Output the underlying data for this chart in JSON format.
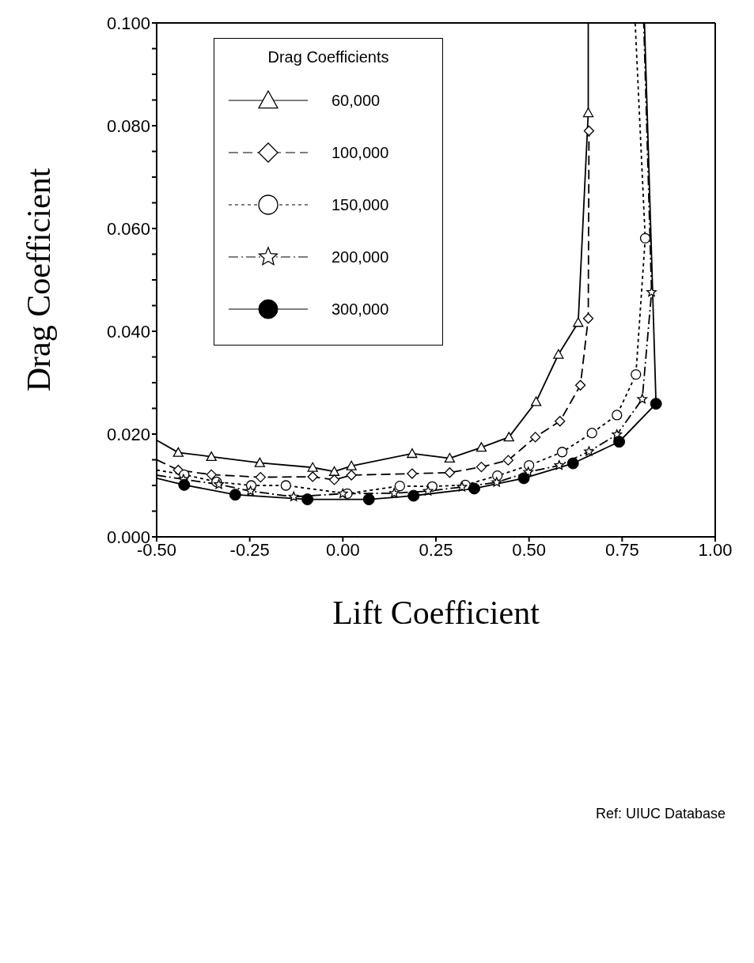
{
  "chart_data": {
    "type": "line",
    "xlabel": "Lift Coefficient",
    "ylabel": "Drag Coefficient",
    "legend_title": "Drag Coefficients",
    "legend": "top left",
    "grid": false,
    "xlim": [
      -0.5,
      1.0
    ],
    "ylim": [
      0,
      0.1
    ],
    "xticks": [
      {
        "value": -0.5,
        "label": "-0.50"
      },
      {
        "value": -0.25,
        "label": "-0.25"
      },
      {
        "value": 0,
        "label": "0.00"
      },
      {
        "value": 0.25,
        "label": "0.25"
      },
      {
        "value": 0.5,
        "label": "0.50"
      },
      {
        "value": 0.75,
        "label": "0.75"
      },
      {
        "value": 1.0,
        "label": "1.00"
      }
    ],
    "yticks": [
      {
        "value": 0,
        "label": "0.000"
      },
      {
        "value": 0.005,
        "label": null
      },
      {
        "value": 0.01,
        "label": null
      },
      {
        "value": 0.015,
        "label": null
      },
      {
        "value": 0.02,
        "label": "0.020"
      },
      {
        "value": 0.025,
        "label": null
      },
      {
        "value": 0.03,
        "label": null
      },
      {
        "value": 0.035,
        "label": null
      },
      {
        "value": 0.04,
        "label": "0.040"
      },
      {
        "value": 0.045,
        "label": null
      },
      {
        "value": 0.05,
        "label": null
      },
      {
        "value": 0.055,
        "label": null
      },
      {
        "value": 0.06,
        "label": "0.060"
      },
      {
        "value": 0.065,
        "label": null
      },
      {
        "value": 0.07,
        "label": null
      },
      {
        "value": 0.075,
        "label": null
      },
      {
        "value": 0.08,
        "label": "0.080"
      },
      {
        "value": 0.085,
        "label": null
      },
      {
        "value": 0.09,
        "label": null
      },
      {
        "value": 0.095,
        "label": null
      },
      {
        "value": 0.1,
        "label": "0.100"
      }
    ],
    "annotations": [
      "Ref: UIUC Database"
    ],
    "series": [
      {
        "name": "60,000",
        "color": "#000000",
        "marker": "triangle",
        "line_style": "solid",
        "x": [
          -0.5,
          -0.442,
          -0.353,
          -0.223,
          -0.081,
          -0.023,
          0.023,
          0.186,
          0.287,
          0.372,
          0.446,
          0.519,
          0.579,
          0.632,
          0.659,
          0.659
        ],
        "values": [
          0.0188,
          0.0164,
          0.0156,
          0.0144,
          0.0135,
          0.0127,
          0.0138,
          0.0162,
          0.0153,
          0.0174,
          0.0194,
          0.0263,
          0.0355,
          0.0417,
          0.0825,
          0.1
        ]
      },
      {
        "name": "100,000",
        "color": "#000000",
        "marker": "diamond",
        "line_style": "dashed",
        "x": [
          -0.5,
          -0.442,
          -0.353,
          -0.221,
          -0.081,
          -0.023,
          0.023,
          0.186,
          0.287,
          0.372,
          0.444,
          0.517,
          0.583,
          0.638,
          0.659,
          0.661
        ],
        "values": [
          0.015,
          0.013,
          0.0121,
          0.0116,
          0.0117,
          0.0111,
          0.012,
          0.0123,
          0.0125,
          0.0136,
          0.0149,
          0.0194,
          0.0225,
          0.0295,
          0.0425,
          0.079
        ]
      },
      {
        "name": "150,000",
        "color": "#000000",
        "marker": "circle",
        "colors": [
          null,
          "#ffffff",
          "#ffffff",
          "#ffffff",
          "#ffffff",
          "#ffffff",
          "#ffffff",
          "#ffffff",
          "#ffffff",
          "#ffffff",
          "#ffffff",
          "#ffffff",
          "#ffffff",
          "#ffffff",
          "#ffffff",
          "#ffffff",
          null
        ],
        "line_style": "dotted",
        "x": [
          -0.5,
          -0.426,
          -0.339,
          -0.246,
          -0.153,
          0.012,
          0.153,
          0.24,
          0.329,
          0.415,
          0.5,
          0.589,
          0.669,
          0.736,
          0.787,
          0.812,
          0.785
        ],
        "values": [
          0.013,
          0.0121,
          0.0107,
          0.01,
          0.01,
          0.0084,
          0.0099,
          0.0098,
          0.0101,
          0.0119,
          0.0139,
          0.0165,
          0.0202,
          0.0237,
          0.0316,
          0.0581,
          0.1
        ]
      },
      {
        "name": "200,000",
        "color": "#000000",
        "marker": "star",
        "line_style": "dashdot",
        "x": [
          -0.5,
          -0.428,
          -0.333,
          -0.248,
          -0.132,
          0.0,
          0.138,
          0.229,
          0.32,
          0.413,
          0.498,
          0.581,
          0.661,
          0.736,
          0.804,
          0.829,
          0.808
        ],
        "values": [
          0.012,
          0.0112,
          0.0102,
          0.0089,
          0.0078,
          0.0084,
          0.0085,
          0.0089,
          0.0097,
          0.0106,
          0.0126,
          0.0139,
          0.0166,
          0.0199,
          0.0268,
          0.0476,
          0.1
        ]
      },
      {
        "name": "300,000",
        "color": "#000000",
        "marker": "circle",
        "line_style": "solid",
        "x": [
          -0.5,
          -0.426,
          -0.289,
          -0.095,
          0.07,
          0.19,
          0.353,
          0.486,
          0.618,
          0.742,
          0.841,
          0.81
        ],
        "values": [
          0.0114,
          0.0101,
          0.0082,
          0.0073,
          0.0073,
          0.008,
          0.0094,
          0.0114,
          0.0143,
          0.0185,
          0.0259,
          0.1
        ]
      }
    ]
  }
}
